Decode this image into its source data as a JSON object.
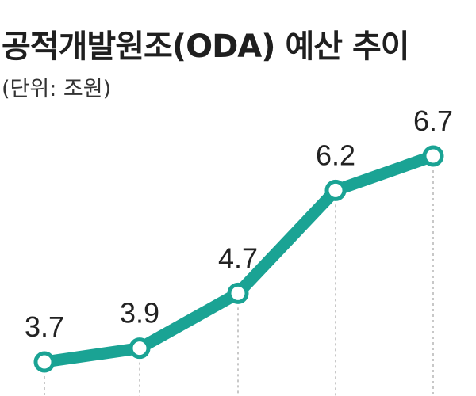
{
  "title": "공적개발원조(ODA) 예산 추이",
  "unit": "(단위: 조원)",
  "colors": {
    "line": "#1aa394",
    "marker_fill": "#ffffff",
    "dashes": "#b5b5b5",
    "labels": "#222222"
  },
  "chart_data": {
    "type": "line",
    "title": "공적개발원조(ODA) 예산 추이",
    "unit_label": "(단위: 조원)",
    "xlabel": "",
    "ylabel": "",
    "categories": [
      "",
      "",
      "",
      "",
      ""
    ],
    "series": [
      {
        "values": [
          3.7,
          3.9,
          4.7,
          6.2,
          6.7
        ]
      }
    ],
    "data_labels": [
      "3.7",
      "3.9",
      "4.7",
      "6.2",
      "6.7"
    ],
    "grid": false,
    "legend": "none"
  }
}
